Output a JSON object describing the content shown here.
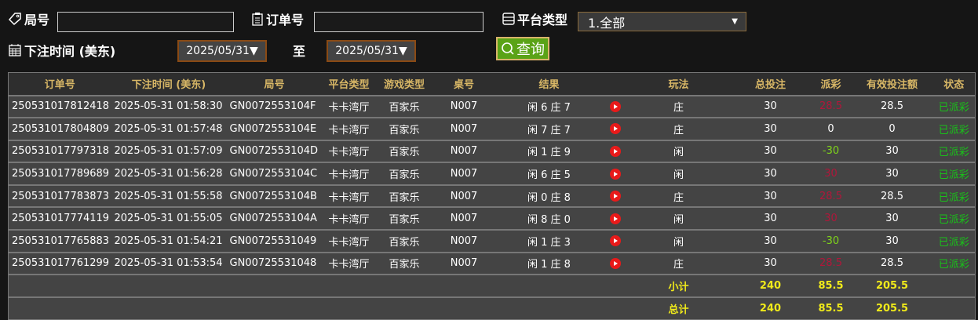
{
  "filters": {
    "round_label": "局号",
    "round_value": "",
    "order_label": "订单号",
    "order_value": "",
    "platform_label": "平台类型",
    "platform_selected": "1.全部",
    "time_label": "下注时间 (美东)",
    "date_from": "2025/05/31▼",
    "to_label": "至",
    "date_to": "2025/05/31▼",
    "query_label": "查询"
  },
  "table": {
    "headers": [
      "订单号",
      "下注时间 (美东)",
      "局号",
      "平台类型",
      "游戏类型",
      "桌号",
      "结果",
      "",
      "玩法",
      "总投注",
      "派彩",
      "有效投注额",
      "状态"
    ],
    "rows": [
      [
        "250531017812418",
        "2025-05-31 01:58:30",
        "GN0072553104F",
        "卡卡湾厅",
        "百家乐",
        "N007",
        "闲 6 庄 7",
        "庄",
        "30",
        "28.5",
        "28.5",
        "已派彩"
      ],
      [
        "250531017804809",
        "2025-05-31 01:57:48",
        "GN0072553104E",
        "卡卡湾厅",
        "百家乐",
        "N007",
        "闲 7 庄 7",
        "庄",
        "30",
        "0",
        "0",
        "已派彩"
      ],
      [
        "250531017797318",
        "2025-05-31 01:57:09",
        "GN0072553104D",
        "卡卡湾厅",
        "百家乐",
        "N007",
        "闲 1 庄 9",
        "闲",
        "30",
        "-30",
        "30",
        "已派彩"
      ],
      [
        "250531017789689",
        "2025-05-31 01:56:28",
        "GN0072553104C",
        "卡卡湾厅",
        "百家乐",
        "N007",
        "闲 6 庄 5",
        "闲",
        "30",
        "30",
        "30",
        "已派彩"
      ],
      [
        "250531017783873",
        "2025-05-31 01:55:58",
        "GN0072553104B",
        "卡卡湾厅",
        "百家乐",
        "N007",
        "闲 0 庄 8",
        "庄",
        "30",
        "28.5",
        "28.5",
        "已派彩"
      ],
      [
        "250531017774119",
        "2025-05-31 01:55:05",
        "GN0072553104A",
        "卡卡湾厅",
        "百家乐",
        "N007",
        "闲 8 庄 0",
        "闲",
        "30",
        "30",
        "30",
        "已派彩"
      ],
      [
        "250531017765883",
        "2025-05-31 01:54:21",
        "GN00725531049",
        "卡卡湾厅",
        "百家乐",
        "N007",
        "闲 1 庄 3",
        "闲",
        "30",
        "-30",
        "30",
        "已派彩"
      ],
      [
        "250531017761299",
        "2025-05-31 01:53:54",
        "GN00725531048",
        "卡卡湾厅",
        "百家乐",
        "N007",
        "闲 1 庄 8",
        "庄",
        "30",
        "28.5",
        "28.5",
        "已派彩"
      ]
    ],
    "subtotal": {
      "label": "小计",
      "total_bet": "240",
      "payout": "85.5",
      "valid_bet": "205.5"
    },
    "total": {
      "label": "总计",
      "total_bet": "240",
      "payout": "85.5",
      "valid_bet": "205.5"
    }
  },
  "colors": {
    "header_text": "#d8b766",
    "payout_red": "#b0173a",
    "payout_green": "#7fd41a",
    "status_green": "#19c219",
    "totals": "#f0ea1a",
    "query_button": "#5aa317"
  }
}
